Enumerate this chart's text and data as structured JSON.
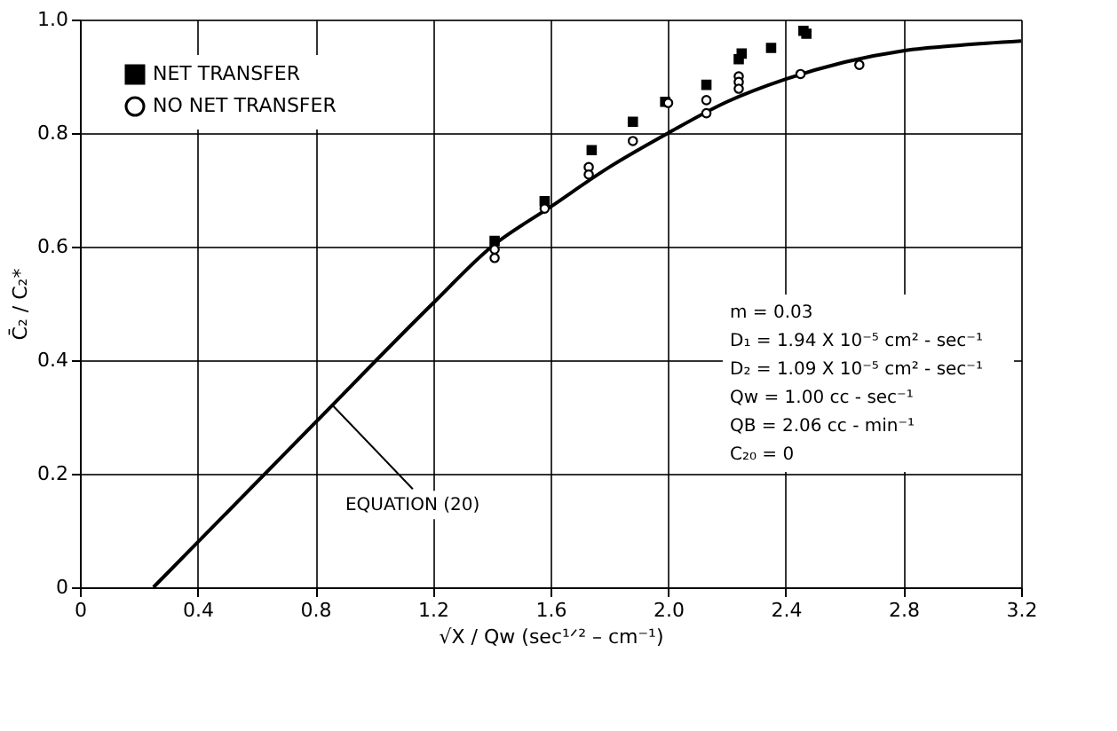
{
  "chart_data": {
    "type": "scatter",
    "xlabel": "√X / Qw  (sec¹ᐟ² – cm⁻¹)",
    "ylabel": "C̄₂ / C₂*",
    "xlim": [
      0,
      3.2
    ],
    "xticks": [
      0,
      0.4,
      0.8,
      1.2,
      1.6,
      {
        "value": 2.0,
        "label": "2.0"
      },
      2.4,
      2.8,
      3.2
    ],
    "ylim": [
      0,
      1.0
    ],
    "yticks": [
      0,
      0.2,
      0.4,
      0.6,
      0.8,
      {
        "value": 1.0,
        "label": "1.0"
      }
    ],
    "grid": true,
    "legend": "top left",
    "series": [
      {
        "name": "NET TRANSFER",
        "color": "#000000",
        "marker": "square",
        "x": [
          1.41,
          1.58,
          1.74,
          1.88,
          1.99,
          2.13,
          2.24,
          2.25,
          2.35,
          2.46,
          2.47
        ],
        "values": [
          0.61,
          0.68,
          0.77,
          0.82,
          0.855,
          0.885,
          0.93,
          0.94,
          0.95,
          0.98,
          0.975
        ]
      },
      {
        "name": "NO NET TRANSFER",
        "color": "#000000",
        "marker": "circle",
        "x": [
          1.41,
          1.41,
          1.58,
          1.73,
          1.73,
          1.88,
          2.0,
          2.13,
          2.13,
          2.24,
          2.24,
          2.24,
          2.45,
          2.65
        ],
        "values": [
          0.595,
          0.58,
          0.667,
          0.74,
          0.727,
          0.786,
          0.853,
          0.858,
          0.835,
          0.9,
          0.89,
          0.878,
          0.904,
          0.92
        ]
      },
      {
        "type": "line",
        "color": "#000000",
        "marker": "none",
        "line_style": "solid",
        "x": [
          0.25,
          0.8,
          1.2,
          1.4,
          1.6,
          1.8,
          2.0,
          2.2,
          2.4,
          2.6,
          2.8,
          3.0,
          3.2
        ],
        "values": [
          0,
          0.29,
          0.5,
          0.6,
          0.67,
          0.74,
          0.8,
          0.855,
          0.895,
          0.925,
          0.945,
          0.955,
          0.962
        ]
      }
    ],
    "annotations": [
      {
        "text": "EQUATION (20)",
        "x": 0.86,
        "y": 0.32
      },
      "m = 0.03",
      "D₁ = 1.94 X 10⁻⁵ cm² - sec⁻¹",
      "D₂ = 1.09 X 10⁻⁵ cm² - sec⁻¹",
      "Qw = 1.00 cc - sec⁻¹",
      "QB = 2.06 cc - min⁻¹",
      "C₂₀ = 0"
    ]
  }
}
